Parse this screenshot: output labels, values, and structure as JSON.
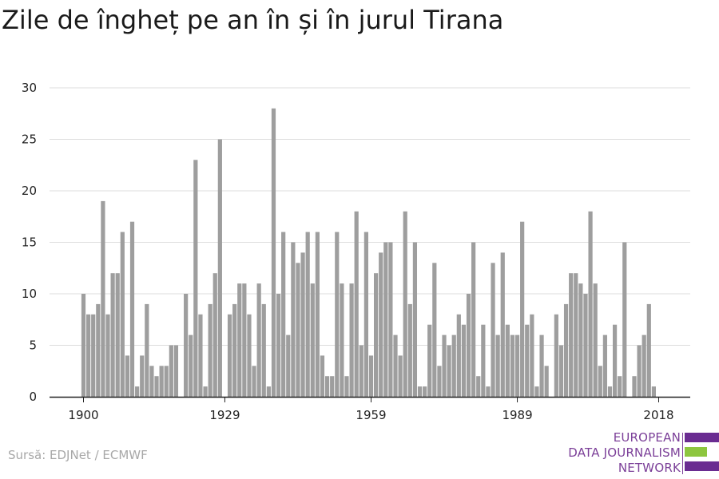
{
  "title": "Zile de îngheț pe an în și în jurul Tirana",
  "source": "Sursă: EDJNet / ECMWF",
  "logo": {
    "line1": "EUROPEAN",
    "line2": "DATA JOURNALISM",
    "line3": "NETWORK",
    "colors": {
      "purple": "#6a2c91",
      "green": "#8dc63f"
    }
  },
  "colors": {
    "bar": "#9e9e9e",
    "grid": "#dddddd",
    "axis": "#222222"
  },
  "chart_data": {
    "type": "bar",
    "title": "Zile de îngheț pe an în și în jurul Tirana",
    "xlabel": "",
    "ylabel": "",
    "ylim": [
      0,
      30
    ],
    "yticks": [
      0,
      5,
      10,
      15,
      20,
      25,
      30
    ],
    "xticks": [
      1900,
      1929,
      1959,
      1989,
      2018
    ],
    "grid": true,
    "x": [
      1900,
      1901,
      1902,
      1903,
      1904,
      1905,
      1906,
      1907,
      1908,
      1909,
      1910,
      1911,
      1912,
      1913,
      1914,
      1915,
      1916,
      1917,
      1918,
      1919,
      1920,
      1921,
      1922,
      1923,
      1924,
      1925,
      1926,
      1927,
      1928,
      1929,
      1930,
      1931,
      1932,
      1933,
      1934,
      1935,
      1936,
      1937,
      1938,
      1939,
      1940,
      1941,
      1942,
      1943,
      1944,
      1945,
      1946,
      1947,
      1948,
      1949,
      1950,
      1951,
      1952,
      1953,
      1954,
      1955,
      1956,
      1957,
      1958,
      1959,
      1960,
      1961,
      1962,
      1963,
      1964,
      1965,
      1966,
      1967,
      1968,
      1969,
      1970,
      1971,
      1972,
      1973,
      1974,
      1975,
      1976,
      1977,
      1978,
      1979,
      1980,
      1981,
      1982,
      1983,
      1984,
      1985,
      1986,
      1987,
      1988,
      1989,
      1990,
      1991,
      1992,
      1993,
      1994,
      1995,
      1996,
      1997,
      1998,
      1999,
      2000,
      2001,
      2002,
      2003,
      2004,
      2005,
      2006,
      2007,
      2008,
      2009,
      2010,
      2011,
      2012,
      2013,
      2014,
      2015,
      2016,
      2017,
      2018
    ],
    "values": [
      10,
      8,
      8,
      9,
      19,
      8,
      12,
      12,
      16,
      4,
      17,
      1,
      4,
      9,
      3,
      2,
      3,
      3,
      5,
      5,
      0,
      10,
      6,
      23,
      8,
      1,
      9,
      12,
      25,
      0,
      8,
      9,
      11,
      11,
      8,
      3,
      11,
      9,
      1,
      28,
      10,
      16,
      6,
      15,
      13,
      14,
      16,
      11,
      16,
      4,
      2,
      2,
      16,
      11,
      2,
      11,
      18,
      5,
      16,
      4,
      12,
      14,
      15,
      15,
      6,
      4,
      18,
      9,
      15,
      1,
      1,
      7,
      13,
      3,
      6,
      5,
      6,
      8,
      7,
      10,
      15,
      2,
      7,
      1,
      13,
      6,
      14,
      7,
      6,
      6,
      17,
      7,
      8,
      1,
      6,
      3,
      0,
      8,
      5,
      9,
      12,
      12,
      11,
      10,
      18,
      11,
      3,
      6,
      1,
      7,
      2,
      15,
      0,
      2,
      5,
      6,
      9,
      1,
      0
    ]
  }
}
